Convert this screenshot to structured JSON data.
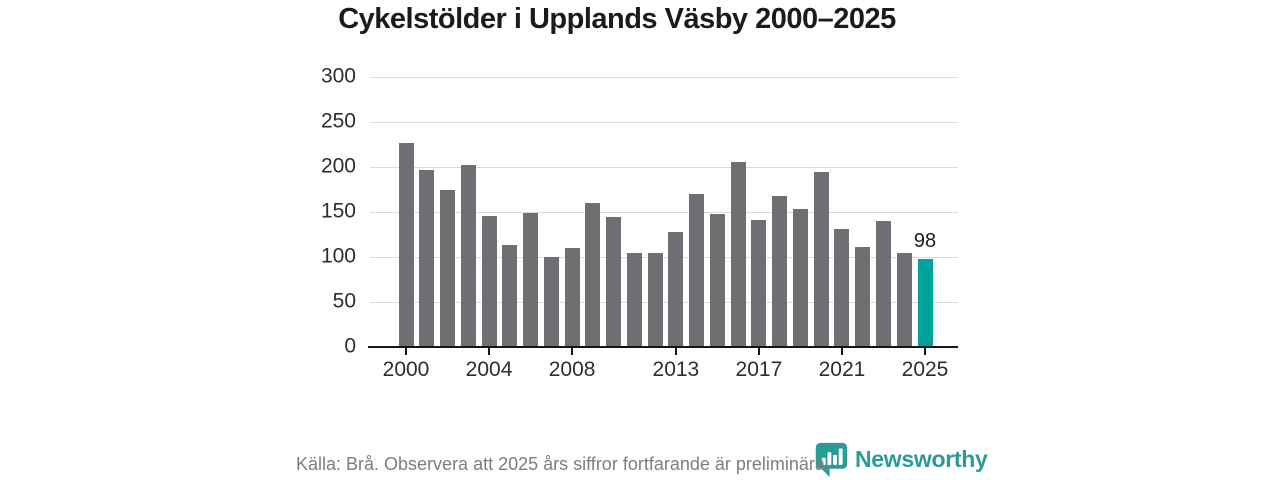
{
  "title": "Cykelstölder i Upplands Väsby 2000–2025",
  "chart_data": {
    "type": "bar",
    "title": "Cykelstölder i Upplands Väsby 2000–2025",
    "categories": [
      "2000",
      "2001",
      "2002",
      "2003",
      "2004",
      "2005",
      "2006",
      "2007",
      "2008",
      "2009",
      "2010",
      "2011",
      "2012",
      "2013",
      "2014",
      "2015",
      "2016",
      "2017",
      "2018",
      "2019",
      "2020",
      "2021",
      "2022",
      "2023",
      "2024",
      "2025"
    ],
    "values": [
      227,
      197,
      174,
      202,
      146,
      113,
      149,
      100,
      110,
      160,
      145,
      105,
      105,
      128,
      170,
      148,
      206,
      141,
      168,
      153,
      194,
      131,
      111,
      140,
      105,
      98
    ],
    "highlight_category": "2025",
    "highlight_value_label": "98",
    "y_ticks": [
      0,
      50,
      100,
      150,
      200,
      250,
      300
    ],
    "x_tick_labels": [
      "2000",
      "2004",
      "2008",
      "2013",
      "2017",
      "2021",
      "2025"
    ],
    "ylim": [
      0,
      300
    ],
    "grid": true,
    "legend": "none",
    "bar_color": "#6e6e73",
    "highlight_color": "#00a39c",
    "gridline_color": "#dcdcdd",
    "axis_color": "#161616"
  },
  "footer": {
    "source_note": "Källa: Brå. Observera att 2025 års siffror fortfarande är preliminära.",
    "brand": "Newsworthy",
    "brand_color": "#2b9c95",
    "logo_icon": "bar-chart-bubble-icon"
  }
}
